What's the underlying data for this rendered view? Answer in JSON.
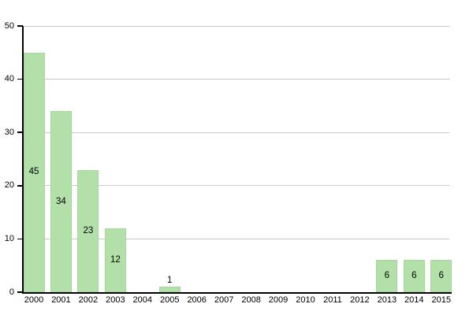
{
  "chart_data": {
    "type": "bar",
    "title": "",
    "xlabel": "",
    "ylabel": "",
    "categories": [
      "2000",
      "2001",
      "2002",
      "2003",
      "2004",
      "2005",
      "2006",
      "2007",
      "2008",
      "2009",
      "2010",
      "2011",
      "2012",
      "2013",
      "2014",
      "2015"
    ],
    "values": [
      45,
      34,
      23,
      12,
      0,
      1,
      0,
      0,
      0,
      0,
      0,
      0,
      0,
      6,
      6,
      6
    ],
    "data_labels": [
      "45",
      "34",
      "23",
      "12",
      "",
      "1",
      "",
      "",
      "",
      "",
      "",
      "",
      "",
      "6",
      "6",
      "6"
    ],
    "ylim": [
      0,
      50
    ],
    "yticks": [
      0,
      10,
      20,
      30,
      40,
      50
    ],
    "grid": "horizontal",
    "legend": "none",
    "colors": {
      "bar_fill": "#b3e0a9",
      "bar_edge": "#a6d89c",
      "gridline": "#c9c9c9",
      "axis": "#000000",
      "text": "#000000"
    }
  }
}
